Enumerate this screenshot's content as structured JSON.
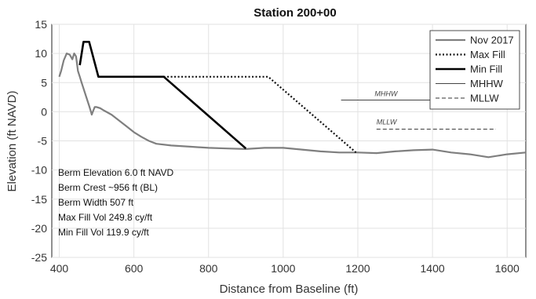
{
  "chart_data": {
    "type": "line",
    "title": "Station 200+00",
    "xlabel": "Distance from Baseline (ft)",
    "ylabel": "Elevation (ft NAVD)",
    "xlim": [
      380,
      1650
    ],
    "ylim": [
      -25,
      15
    ],
    "xticks": [
      400,
      600,
      800,
      1000,
      1200,
      1400,
      1600
    ],
    "yticks": [
      15,
      10,
      5,
      0,
      -5,
      -10,
      -15,
      -20,
      -25
    ],
    "grid": true,
    "legend_position": "top-right",
    "series": [
      {
        "name": "Nov 2017",
        "style": "solid-gray",
        "color": "#7f7f7f",
        "x": [
          400,
          405,
          412,
          420,
          428,
          435,
          440,
          445,
          450,
          455,
          460,
          465,
          470,
          475,
          480,
          485,
          487,
          490,
          495,
          500,
          510,
          520,
          540,
          560,
          580,
          600,
          620,
          640,
          660,
          700,
          750,
          800,
          850,
          900,
          950,
          1000,
          1050,
          1100,
          1150,
          1200,
          1250,
          1300,
          1350,
          1400,
          1450,
          1500,
          1550,
          1600,
          1650
        ],
        "y": [
          6,
          7,
          8.8,
          10,
          9.8,
          9,
          10,
          9.5,
          7,
          6,
          5,
          4,
          3,
          2,
          1,
          0,
          -0.5,
          0,
          0.8,
          0.8,
          0.6,
          0.2,
          -0.5,
          -1.5,
          -2.5,
          -3.5,
          -4.3,
          -5,
          -5.5,
          -5.8,
          -6,
          -6.2,
          -6.3,
          -6.4,
          -6.2,
          -6.2,
          -6.5,
          -6.8,
          -7,
          -7,
          -7.1,
          -6.8,
          -6.6,
          -6.5,
          -7,
          -7.3,
          -7.8,
          -7.3,
          -7
        ]
      },
      {
        "name": "Max Fill",
        "style": "dotted-black",
        "color": "#111111",
        "x": [
          455,
          465,
          480,
          505,
          680,
          960,
          1195
        ],
        "y": [
          8,
          12,
          12,
          6,
          6,
          6,
          -7
        ]
      },
      {
        "name": "Min Fill",
        "style": "solid-black-thick",
        "color": "#000000",
        "x": [
          455,
          465,
          480,
          505,
          680,
          900
        ],
        "y": [
          8,
          12,
          12,
          6,
          6,
          -6.3
        ]
      },
      {
        "name": "MHHW",
        "style": "solid-thin",
        "color": "#444444",
        "x": [
          1155,
          1570
        ],
        "y": [
          2,
          2
        ]
      },
      {
        "name": "MLLW",
        "style": "dashed",
        "color": "#333333",
        "x": [
          1250,
          1570
        ],
        "y": [
          -3,
          -3
        ]
      }
    ],
    "line_tags": [
      {
        "text": "MHHW",
        "x": 1245,
        "y": 2.7
      },
      {
        "text": "MLLW",
        "x": 1250,
        "y": -2.2
      }
    ],
    "annotations": [
      "Berm Elevation 6.0 ft NAVD",
      "Berm Crest ~956 ft (BL)",
      "Berm Width 507 ft",
      "Max Fill Vol 249.8 cy/ft",
      "Min Fill Vol 119.9 cy/ft"
    ]
  }
}
